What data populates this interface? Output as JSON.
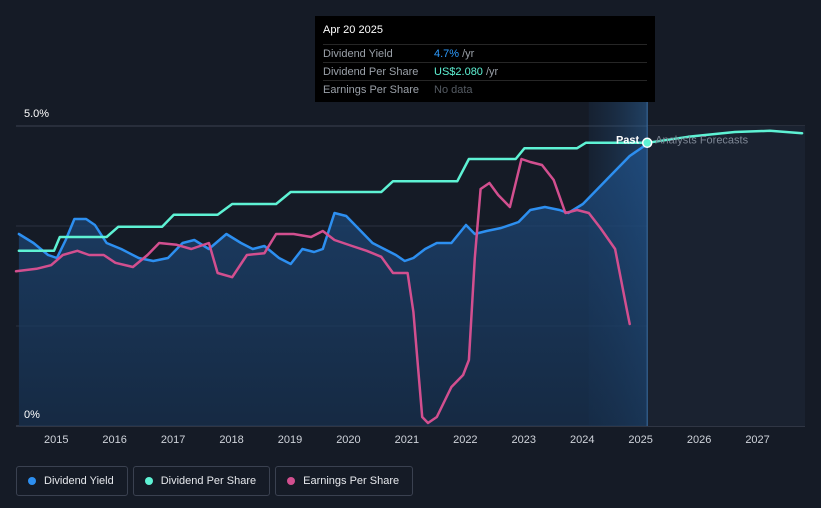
{
  "tooltip": {
    "date": "Apr 20 2025",
    "rows": [
      {
        "label": "Dividend Yield",
        "value": "4.7%",
        "unit": "/yr"
      },
      {
        "label": "Dividend Per Share",
        "value": "US$2.080",
        "unit": "/yr"
      },
      {
        "label": "Earnings Per Share",
        "value": "No data",
        "unit": ""
      }
    ]
  },
  "labels": {
    "past": "Past",
    "forecast": "Analysts Forecasts"
  },
  "legend": [
    {
      "label": "Dividend Yield",
      "color": "#2d8ff0"
    },
    {
      "label": "Dividend Per Share",
      "color": "#5ef2d4"
    },
    {
      "label": "Earnings Per Share",
      "color": "#d24f8f"
    }
  ],
  "chart_data": {
    "type": "line",
    "x_ticks": [
      "2015",
      "2016",
      "2017",
      "2018",
      "2019",
      "2020",
      "2021",
      "2022",
      "2023",
      "2024",
      "2025",
      "2026",
      "2027"
    ],
    "xlim": [
      2014.5,
      2028.0
    ],
    "y_axis": {
      "ticks": [
        "0%",
        "5.0%"
      ],
      "ylim": [
        0,
        5.0
      ]
    },
    "highlight_date": 2025.3,
    "forecast_start": 2024.3,
    "series": [
      {
        "name": "Dividend Yield",
        "color": "#2d8ff0",
        "points": [
          [
            2014.55,
            3.2
          ],
          [
            2014.8,
            3.05
          ],
          [
            2015.05,
            2.85
          ],
          [
            2015.2,
            2.8
          ],
          [
            2015.35,
            3.1
          ],
          [
            2015.5,
            3.45
          ],
          [
            2015.7,
            3.45
          ],
          [
            2015.85,
            3.35
          ],
          [
            2016.05,
            3.05
          ],
          [
            2016.3,
            2.95
          ],
          [
            2016.6,
            2.8
          ],
          [
            2016.85,
            2.75
          ],
          [
            2017.1,
            2.8
          ],
          [
            2017.35,
            3.05
          ],
          [
            2017.55,
            3.1
          ],
          [
            2017.8,
            2.95
          ],
          [
            2018.1,
            3.2
          ],
          [
            2018.35,
            3.05
          ],
          [
            2018.55,
            2.95
          ],
          [
            2018.75,
            3.0
          ],
          [
            2019.0,
            2.8
          ],
          [
            2019.2,
            2.7
          ],
          [
            2019.4,
            2.95
          ],
          [
            2019.6,
            2.9
          ],
          [
            2019.75,
            2.95
          ],
          [
            2019.95,
            3.55
          ],
          [
            2020.15,
            3.5
          ],
          [
            2020.4,
            3.25
          ],
          [
            2020.6,
            3.05
          ],
          [
            2020.8,
            2.95
          ],
          [
            2021.0,
            2.85
          ],
          [
            2021.15,
            2.75
          ],
          [
            2021.3,
            2.8
          ],
          [
            2021.5,
            2.95
          ],
          [
            2021.7,
            3.05
          ],
          [
            2021.95,
            3.05
          ],
          [
            2022.2,
            3.35
          ],
          [
            2022.35,
            3.2
          ],
          [
            2022.55,
            3.25
          ],
          [
            2022.8,
            3.3
          ],
          [
            2023.1,
            3.4
          ],
          [
            2023.3,
            3.6
          ],
          [
            2023.55,
            3.65
          ],
          [
            2023.8,
            3.6
          ],
          [
            2023.95,
            3.55
          ],
          [
            2024.2,
            3.7
          ],
          [
            2024.4,
            3.9
          ],
          [
            2024.7,
            4.2
          ],
          [
            2025.0,
            4.5
          ],
          [
            2025.3,
            4.7
          ]
        ]
      },
      {
        "name": "Dividend Per Share",
        "color": "#5ef2d4",
        "points": [
          [
            2014.55,
            2.92
          ],
          [
            2015.15,
            2.92
          ],
          [
            2015.25,
            3.15
          ],
          [
            2016.05,
            3.15
          ],
          [
            2016.25,
            3.32
          ],
          [
            2017.0,
            3.32
          ],
          [
            2017.2,
            3.52
          ],
          [
            2017.95,
            3.52
          ],
          [
            2018.2,
            3.7
          ],
          [
            2018.95,
            3.7
          ],
          [
            2019.2,
            3.9
          ],
          [
            2020.75,
            3.9
          ],
          [
            2020.95,
            4.08
          ],
          [
            2022.05,
            4.08
          ],
          [
            2022.25,
            4.45
          ],
          [
            2023.05,
            4.45
          ],
          [
            2023.2,
            4.63
          ],
          [
            2024.1,
            4.63
          ],
          [
            2024.25,
            4.72
          ],
          [
            2025.3,
            4.72
          ],
          [
            2026.0,
            4.82
          ],
          [
            2026.8,
            4.9
          ],
          [
            2027.4,
            4.92
          ],
          [
            2027.95,
            4.88
          ]
        ]
      },
      {
        "name": "Earnings Per Share",
        "color": "#d24f8f",
        "points": [
          [
            2014.5,
            2.58
          ],
          [
            2014.85,
            2.62
          ],
          [
            2015.1,
            2.68
          ],
          [
            2015.3,
            2.85
          ],
          [
            2015.55,
            2.92
          ],
          [
            2015.75,
            2.85
          ],
          [
            2016.0,
            2.85
          ],
          [
            2016.2,
            2.72
          ],
          [
            2016.5,
            2.65
          ],
          [
            2016.75,
            2.85
          ],
          [
            2016.95,
            3.05
          ],
          [
            2017.25,
            3.02
          ],
          [
            2017.5,
            2.95
          ],
          [
            2017.8,
            3.05
          ],
          [
            2017.95,
            2.55
          ],
          [
            2018.2,
            2.48
          ],
          [
            2018.45,
            2.85
          ],
          [
            2018.75,
            2.88
          ],
          [
            2018.95,
            3.2
          ],
          [
            2019.25,
            3.2
          ],
          [
            2019.55,
            3.15
          ],
          [
            2019.75,
            3.25
          ],
          [
            2019.95,
            3.1
          ],
          [
            2020.25,
            3.0
          ],
          [
            2020.5,
            2.92
          ],
          [
            2020.75,
            2.82
          ],
          [
            2020.95,
            2.55
          ],
          [
            2021.2,
            2.55
          ],
          [
            2021.3,
            1.9
          ],
          [
            2021.45,
            0.15
          ],
          [
            2021.55,
            0.05
          ],
          [
            2021.7,
            0.15
          ],
          [
            2021.95,
            0.65
          ],
          [
            2022.15,
            0.85
          ],
          [
            2022.25,
            1.1
          ],
          [
            2022.35,
            2.8
          ],
          [
            2022.45,
            3.95
          ],
          [
            2022.6,
            4.05
          ],
          [
            2022.75,
            3.85
          ],
          [
            2022.95,
            3.65
          ],
          [
            2023.15,
            4.45
          ],
          [
            2023.3,
            4.4
          ],
          [
            2023.5,
            4.35
          ],
          [
            2023.7,
            4.1
          ],
          [
            2023.9,
            3.55
          ],
          [
            2024.1,
            3.6
          ],
          [
            2024.3,
            3.55
          ],
          [
            2024.5,
            3.3
          ],
          [
            2024.75,
            2.95
          ],
          [
            2024.95,
            1.95
          ],
          [
            2025.0,
            1.7
          ]
        ]
      }
    ]
  }
}
